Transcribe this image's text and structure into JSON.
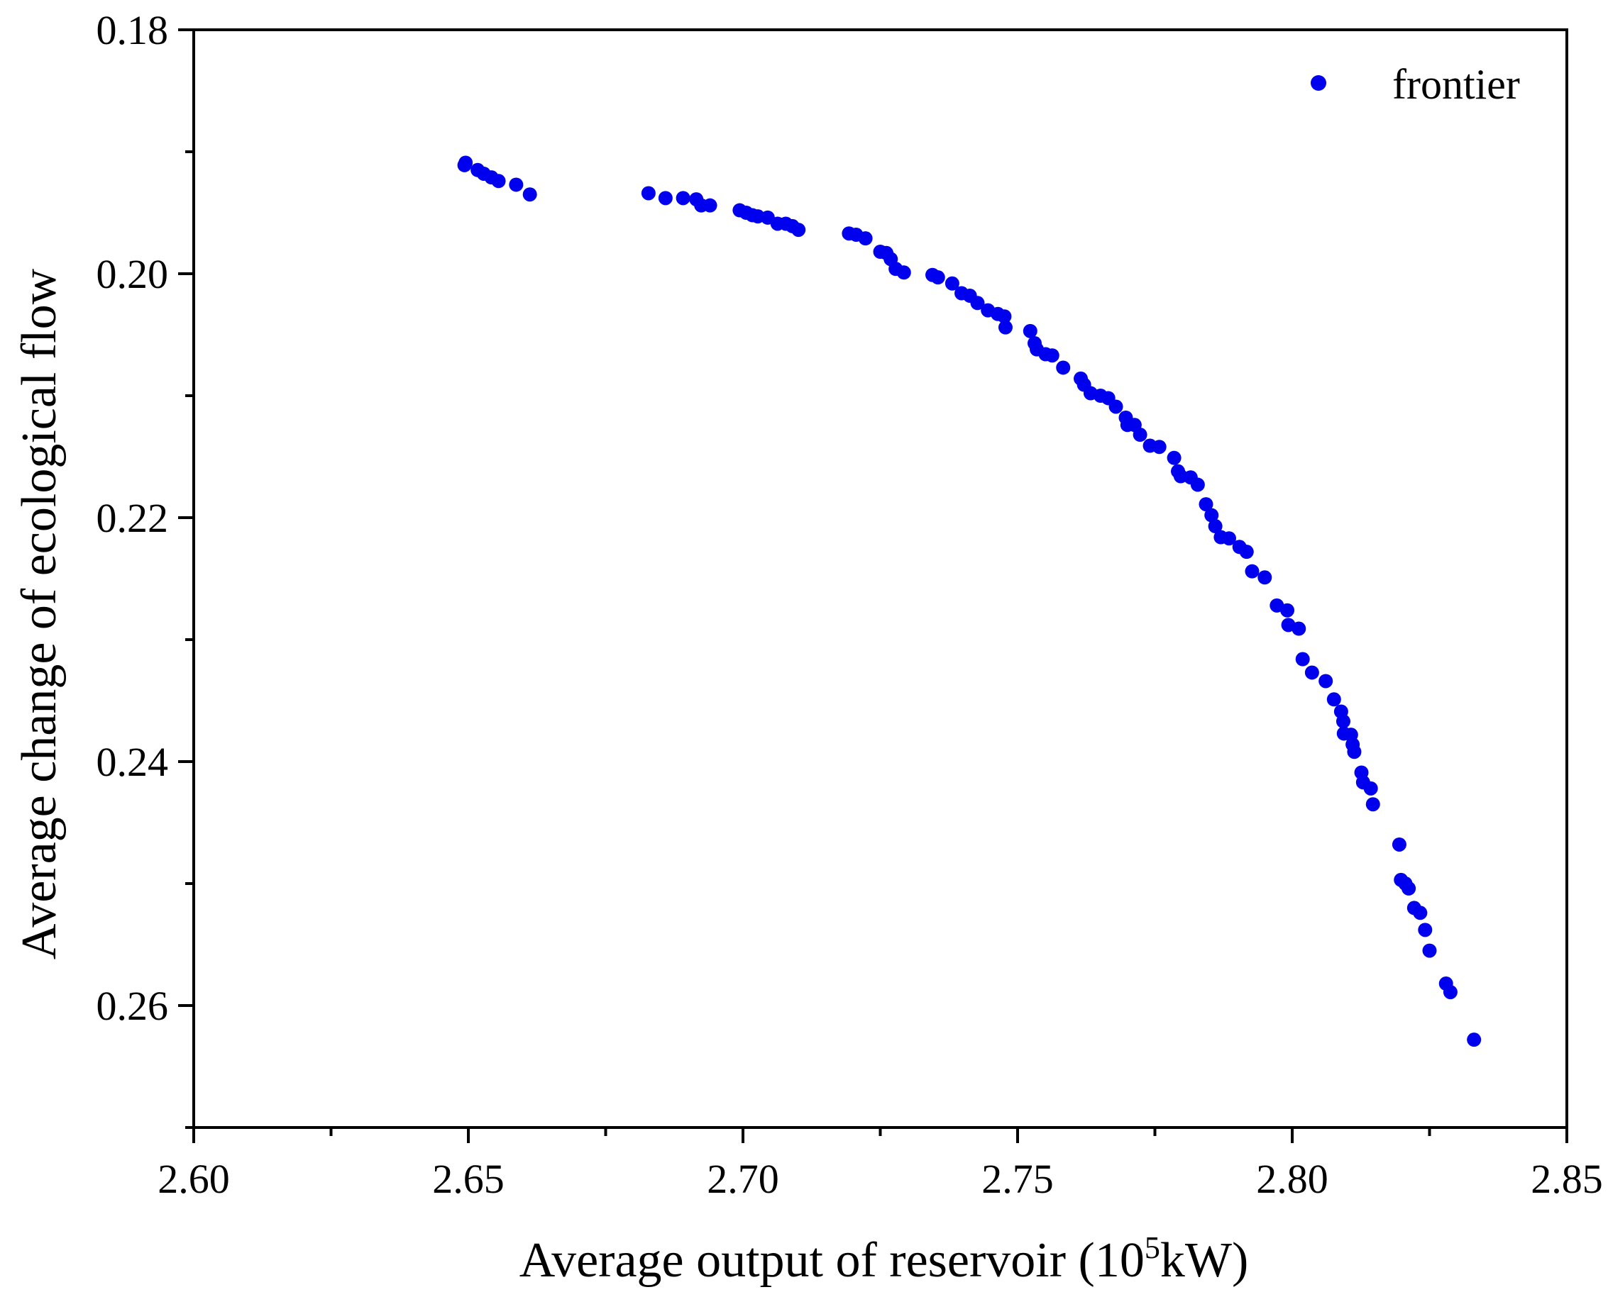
{
  "chart_data": {
    "type": "scatter",
    "title": "",
    "xlabel": {
      "main": "Average output of reservoir (10",
      "superscript": "5",
      "suffix": "kW)"
    },
    "ylabel": "Average change of ecological flow",
    "xlim": [
      2.6,
      2.85
    ],
    "ylim": [
      0.18,
      0.27
    ],
    "y_inverted": true,
    "x_ticks": [
      2.6,
      2.65,
      2.7,
      2.75,
      2.8,
      2.85
    ],
    "x_tick_labels": [
      "2.60",
      "2.65",
      "2.70",
      "2.75",
      "2.80",
      "2.85"
    ],
    "x_minor_ticks": [
      2.625,
      2.675,
      2.725,
      2.775,
      2.825
    ],
    "y_ticks": [
      0.18,
      0.2,
      0.22,
      0.24,
      0.26
    ],
    "y_tick_labels": [
      "0.18",
      "0.20",
      "0.22",
      "0.24",
      "0.26"
    ],
    "y_minor_ticks": [
      0.19,
      0.21,
      0.23,
      0.25,
      0.27
    ],
    "grid": false,
    "legend": {
      "position": "top-right",
      "entries": [
        "frontier"
      ]
    },
    "series": [
      {
        "name": "frontier",
        "color": "#0000ee",
        "points": [
          [
            2.6493,
            0.1911
          ],
          [
            2.6495,
            0.1909
          ],
          [
            2.6517,
            0.1915
          ],
          [
            2.6528,
            0.1918
          ],
          [
            2.6542,
            0.1921
          ],
          [
            2.6555,
            0.1924
          ],
          [
            2.6587,
            0.1927
          ],
          [
            2.6612,
            0.1935
          ],
          [
            2.6828,
            0.1934
          ],
          [
            2.6859,
            0.1938
          ],
          [
            2.6891,
            0.1938
          ],
          [
            2.6915,
            0.1939
          ],
          [
            2.6924,
            0.1944
          ],
          [
            2.694,
            0.1944
          ],
          [
            2.6994,
            0.1948
          ],
          [
            2.7006,
            0.195
          ],
          [
            2.7017,
            0.1952
          ],
          [
            2.7027,
            0.1953
          ],
          [
            2.7045,
            0.1954
          ],
          [
            2.7063,
            0.1959
          ],
          [
            2.7078,
            0.1959
          ],
          [
            2.709,
            0.1961
          ],
          [
            2.7101,
            0.1964
          ],
          [
            2.7193,
            0.1967
          ],
          [
            2.7206,
            0.1968
          ],
          [
            2.7223,
            0.1971
          ],
          [
            2.725,
            0.1982
          ],
          [
            2.7261,
            0.1983
          ],
          [
            2.7269,
            0.1988
          ],
          [
            2.7278,
            0.1996
          ],
          [
            2.7293,
            0.1999
          ],
          [
            2.7345,
            0.2001
          ],
          [
            2.7355,
            0.2003
          ],
          [
            2.7381,
            0.2008
          ],
          [
            2.7398,
            0.2016
          ],
          [
            2.7413,
            0.2018
          ],
          [
            2.7427,
            0.2024
          ],
          [
            2.7446,
            0.203
          ],
          [
            2.7464,
            0.2033
          ],
          [
            2.7476,
            0.2035
          ],
          [
            2.7478,
            0.2044
          ],
          [
            2.7523,
            0.2047
          ],
          [
            2.7531,
            0.2057
          ],
          [
            2.7535,
            0.2062
          ],
          [
            2.7551,
            0.2066
          ],
          [
            2.7563,
            0.2067
          ],
          [
            2.7583,
            0.2077
          ],
          [
            2.7615,
            0.2086
          ],
          [
            2.7621,
            0.2091
          ],
          [
            2.7633,
            0.2098
          ],
          [
            2.7651,
            0.21
          ],
          [
            2.7665,
            0.2102
          ],
          [
            2.7679,
            0.2109
          ],
          [
            2.7697,
            0.2118
          ],
          [
            2.77,
            0.2124
          ],
          [
            2.7713,
            0.2124
          ],
          [
            2.7723,
            0.2132
          ],
          [
            2.7741,
            0.2141
          ],
          [
            2.7758,
            0.2142
          ],
          [
            2.7785,
            0.2151
          ],
          [
            2.7792,
            0.2162
          ],
          [
            2.7797,
            0.2166
          ],
          [
            2.7815,
            0.2167
          ],
          [
            2.7828,
            0.2173
          ],
          [
            2.7843,
            0.2189
          ],
          [
            2.7853,
            0.2198
          ],
          [
            2.786,
            0.2207
          ],
          [
            2.787,
            0.2216
          ],
          [
            2.7885,
            0.2217
          ],
          [
            2.7904,
            0.2224
          ],
          [
            2.7917,
            0.2228
          ],
          [
            2.7927,
            0.2244
          ],
          [
            2.795,
            0.2249
          ],
          [
            2.7972,
            0.2272
          ],
          [
            2.7991,
            0.2276
          ],
          [
            2.7993,
            0.2288
          ],
          [
            2.8012,
            0.2291
          ],
          [
            2.8019,
            0.2316
          ],
          [
            2.8036,
            0.2327
          ],
          [
            2.8061,
            0.2334
          ],
          [
            2.8076,
            0.2349
          ],
          [
            2.8089,
            0.2359
          ],
          [
            2.8093,
            0.2367
          ],
          [
            2.8094,
            0.2377
          ],
          [
            2.8107,
            0.2378
          ],
          [
            2.811,
            0.2386
          ],
          [
            2.8113,
            0.2392
          ],
          [
            2.8126,
            0.2409
          ],
          [
            2.8129,
            0.2417
          ],
          [
            2.8143,
            0.2422
          ],
          [
            2.8147,
            0.2435
          ],
          [
            2.8195,
            0.2468
          ],
          [
            2.8198,
            0.2497
          ],
          [
            2.8206,
            0.25
          ],
          [
            2.8212,
            0.2504
          ],
          [
            2.8222,
            0.252
          ],
          [
            2.8233,
            0.2524
          ],
          [
            2.8242,
            0.2538
          ],
          [
            2.825,
            0.2555
          ],
          [
            2.828,
            0.2582
          ],
          [
            2.8288,
            0.2589
          ],
          [
            2.8331,
            0.2628
          ]
        ]
      }
    ]
  }
}
